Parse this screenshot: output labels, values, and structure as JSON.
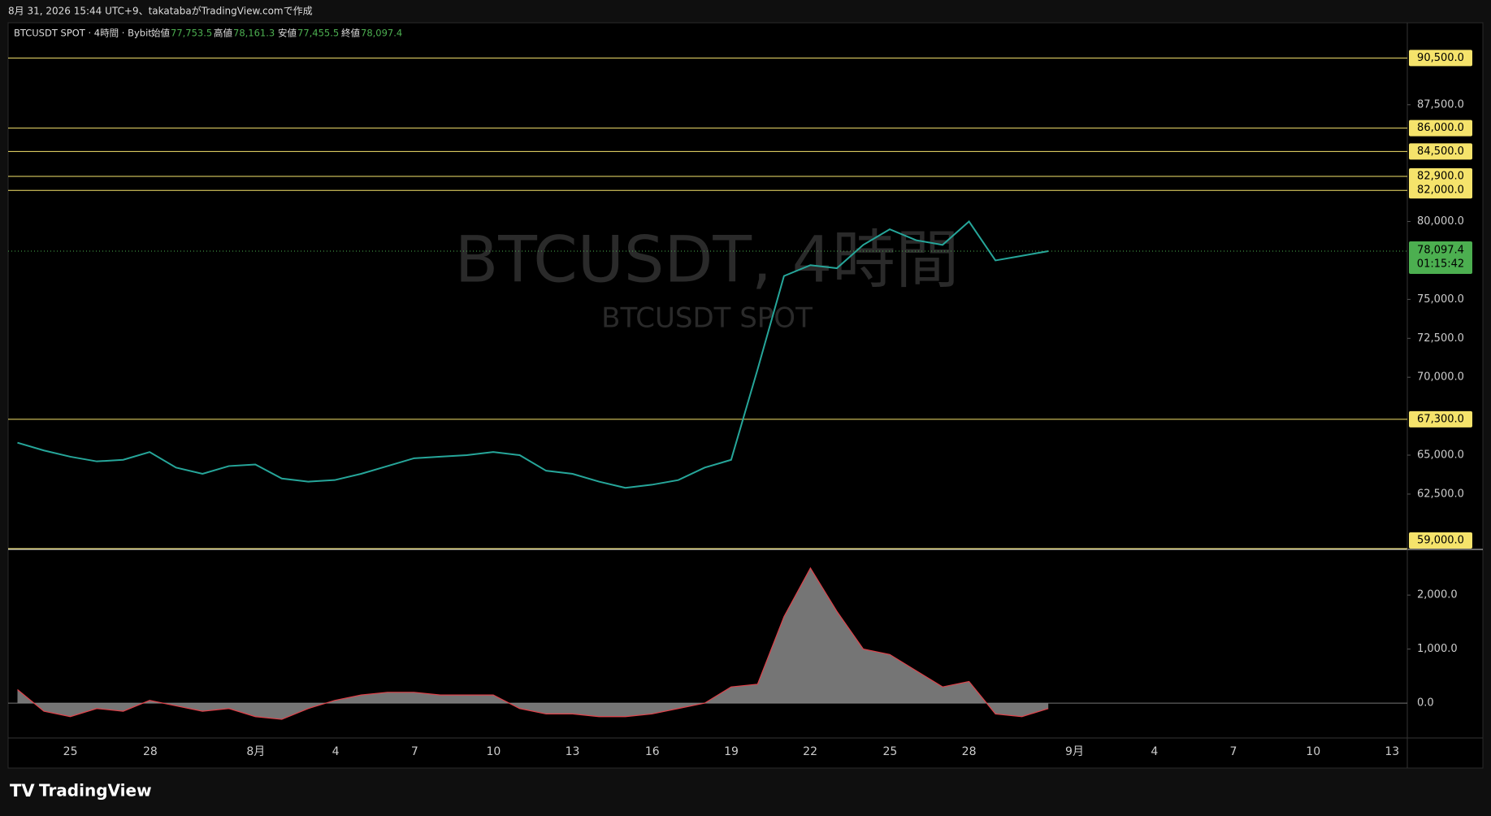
{
  "header": {
    "caption": "8月 31, 2026 15:44 UTC+9、takatabaがTradingView.comで作成"
  },
  "legend": {
    "symbol": "BTCUSDT SPOT · 4時間 · Bybit",
    "open_label": "始値",
    "open": "77,753.5",
    "high_label": "高値",
    "high": "78,161.3",
    "low_label": "安値",
    "low": "77,455.5",
    "close_label": "終値",
    "close": "78,097.4"
  },
  "watermark": {
    "title": "BTCUSDT, 4時間",
    "subtitle": "BTCUSDT SPOT"
  },
  "footer": {
    "brand": "TradingView"
  },
  "chart_data": {
    "type": "line",
    "time_labels": [
      "25",
      "28",
      "8月",
      "4",
      "7",
      "10",
      "13",
      "16",
      "19",
      "22",
      "25",
      "28",
      "9月",
      "4",
      "7",
      "10",
      "13"
    ],
    "ylim": [
      59000,
      92500
    ],
    "yticks": [
      {
        "value": 62500,
        "label": "62,500.0"
      },
      {
        "value": 65000,
        "label": "65,000.0"
      },
      {
        "value": 70000,
        "label": "70,000.0"
      },
      {
        "value": 72500,
        "label": "72,500.0"
      },
      {
        "value": 75000,
        "label": "75,000.0"
      },
      {
        "value": 80000,
        "label": "80,000.0"
      },
      {
        "value": 87500,
        "label": "87,500.0"
      }
    ],
    "levels": [
      {
        "value": 90500,
        "label": "90,500.0"
      },
      {
        "value": 86000,
        "label": "86,000.0"
      },
      {
        "value": 84500,
        "label": "84,500.0"
      },
      {
        "value": 82900,
        "label": "82,900.0"
      },
      {
        "value": 82000,
        "label": "82,000.0"
      },
      {
        "value": 67300,
        "label": "67,300.0"
      },
      {
        "value": 59000,
        "label": "59,000.0"
      }
    ],
    "level_color": "#f5e36b",
    "last_price": {
      "value": 78097.4,
      "label": "78,097.4",
      "countdown": "01:15:42"
    },
    "series": [
      {
        "name": "BTCUSDT",
        "color": "#26a69a",
        "values": [
          65800,
          65300,
          64900,
          64600,
          64700,
          65200,
          64200,
          63800,
          64300,
          64400,
          63500,
          63300,
          63400,
          63800,
          64300,
          64800,
          64900,
          65000,
          65200,
          65000,
          64000,
          63800,
          63300,
          62900,
          63100,
          63400,
          64200,
          64700,
          70500,
          76500,
          77200,
          77000,
          78500,
          79500,
          78800,
          78500,
          80000,
          77500,
          77800,
          78097.4
        ]
      }
    ],
    "oscillator": {
      "ylim": [
        -600,
        2800
      ],
      "yticks": [
        {
          "value": 2000,
          "label": "2,000.0"
        },
        {
          "value": 1000,
          "label": "1,000.0"
        },
        {
          "value": 0,
          "label": "0.0"
        }
      ],
      "color": "#8a8a8a",
      "values": [
        250,
        -150,
        -250,
        -100,
        -150,
        50,
        -50,
        -150,
        -100,
        -250,
        -300,
        -100,
        50,
        150,
        200,
        200,
        150,
        150,
        150,
        -100,
        -200,
        -200,
        -250,
        -250,
        -200,
        -100,
        0,
        300,
        350,
        1600,
        2500,
        1700,
        1000,
        900,
        600,
        300,
        400,
        -200,
        -250,
        -100
      ]
    }
  }
}
